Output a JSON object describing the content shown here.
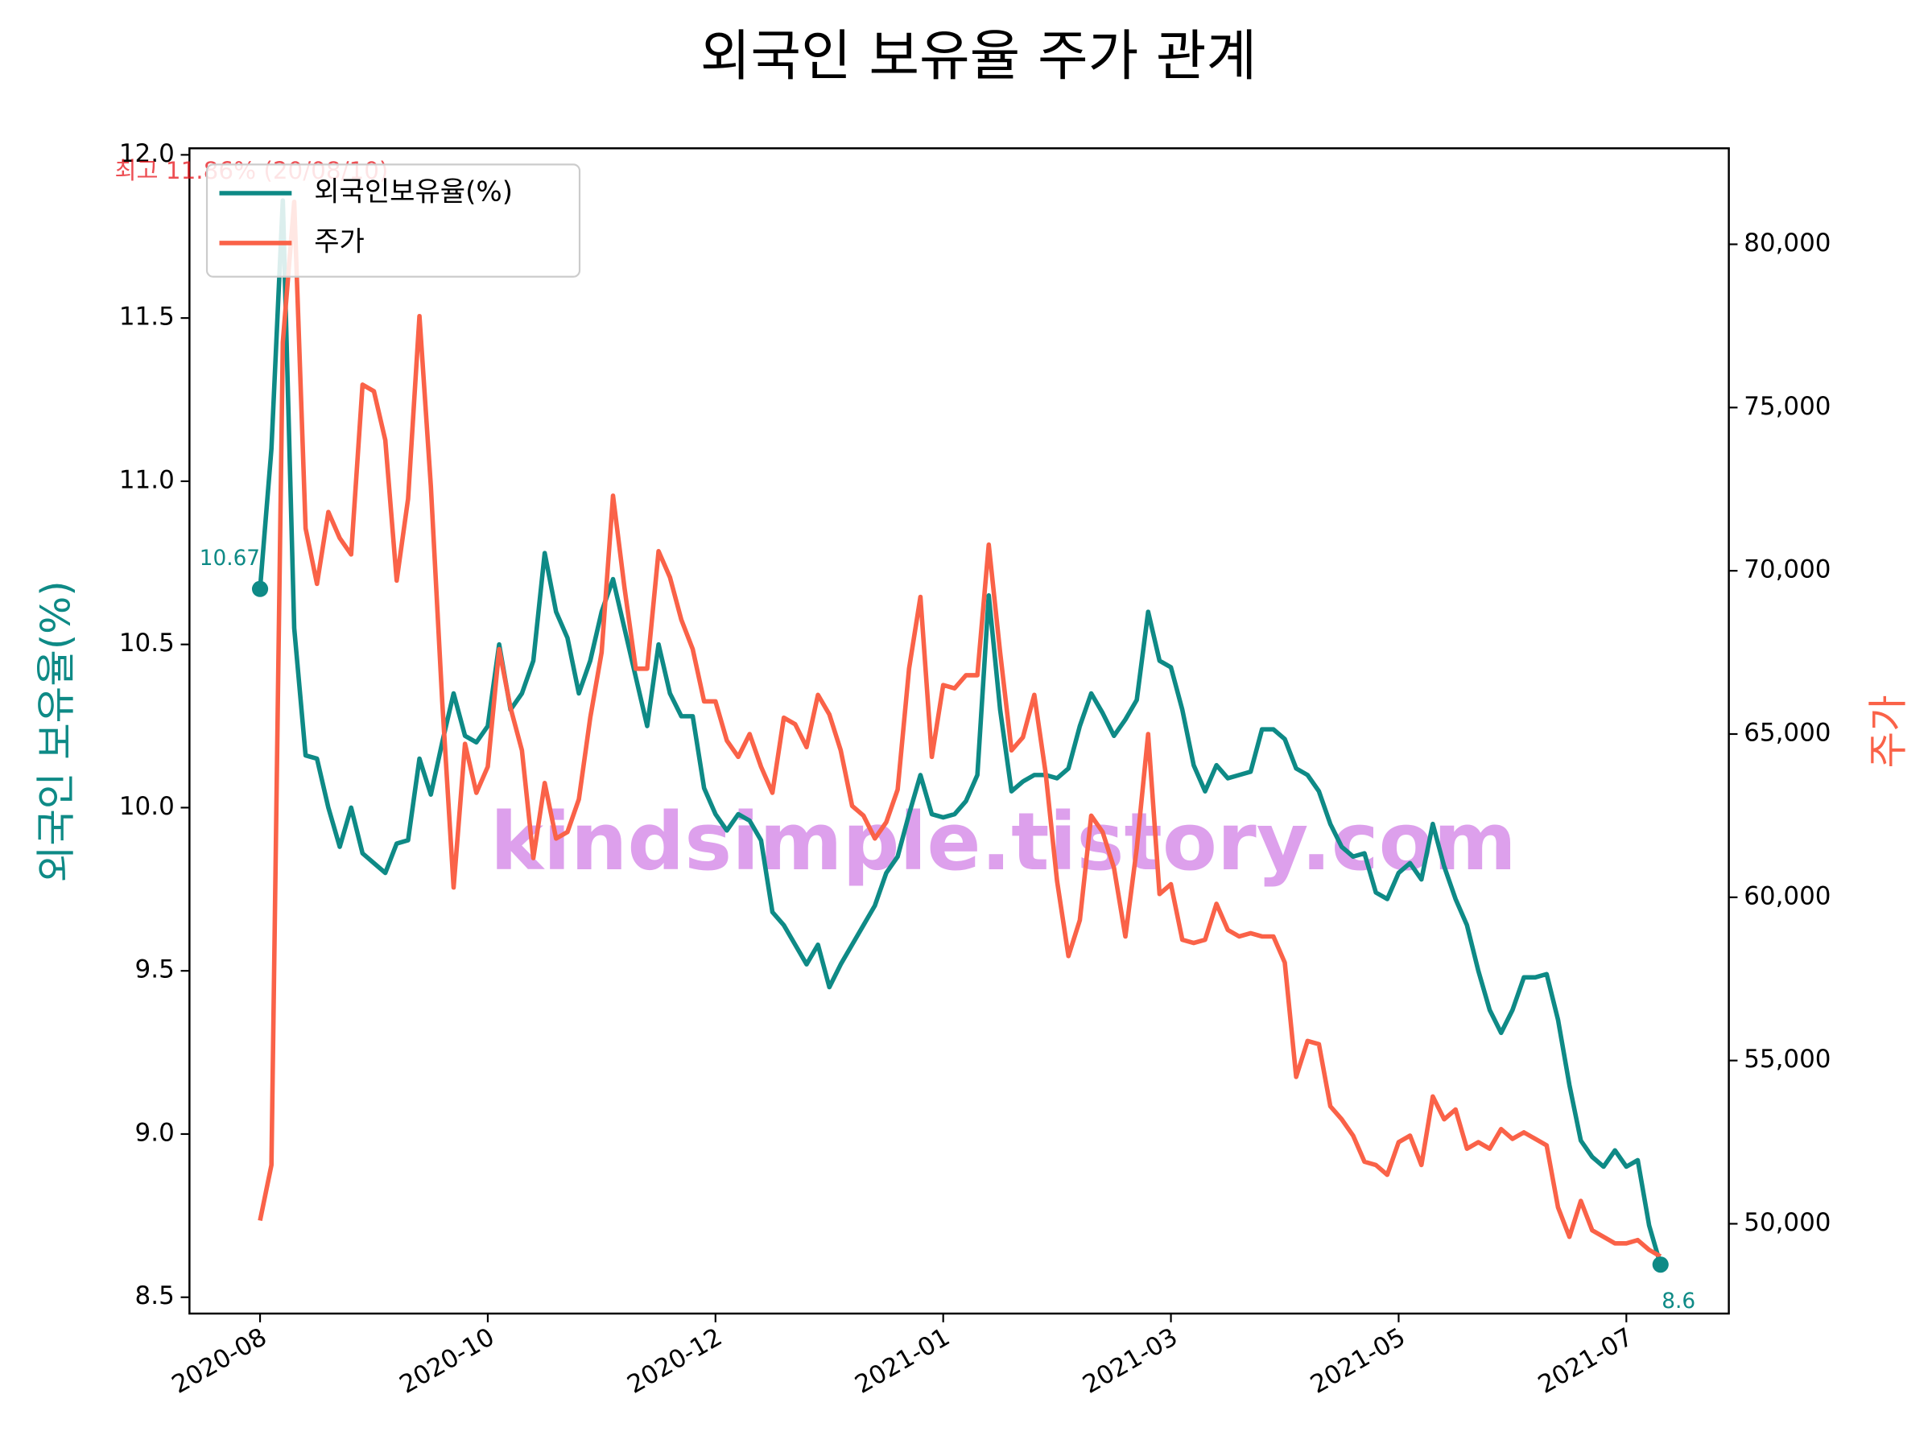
{
  "chart_data": {
    "type": "line",
    "title": "외국인 보유율 주가 관계",
    "ylabel": "외국인 보유율(%)",
    "y2label": "주가",
    "annotation": "최고 11.86% (20/08/10)",
    "watermark": "kindsimple.tistory.com",
    "legend": "upper left",
    "xlim": [
      -0.31,
      6.45
    ],
    "xticks": [
      {
        "value": 0,
        "label": "2020-08"
      },
      {
        "value": 1,
        "label": "2020-10"
      },
      {
        "value": 2,
        "label": "2020-12"
      },
      {
        "value": 3,
        "label": "2021-01"
      },
      {
        "value": 4,
        "label": "2021-03"
      },
      {
        "value": 5,
        "label": "2021-05"
      },
      {
        "value": 6,
        "label": "2021-07"
      }
    ],
    "ylim": [
      8.45,
      12.02
    ],
    "yticks": [
      8.5,
      {
        "value": 9,
        "label": "9.0"
      },
      9.5,
      {
        "value": 10,
        "label": "10.0"
      },
      10.5,
      {
        "value": 11,
        "label": "11.0"
      },
      11.5,
      {
        "value": 12,
        "label": "12.0"
      }
    ],
    "y2lim": [
      47250,
      82940
    ],
    "y2ticks": [
      {
        "value": 50000,
        "label": "50,000"
      },
      {
        "value": 55000,
        "label": "55,000"
      },
      {
        "value": 60000,
        "label": "60,000"
      },
      {
        "value": 65000,
        "label": "65,000"
      },
      {
        "value": 70000,
        "label": "70,000"
      },
      {
        "value": 75000,
        "label": "75,000"
      },
      {
        "value": 80000,
        "label": "80,000"
      }
    ],
    "x": [
      0,
      0.05,
      0.1,
      0.15,
      0.2,
      0.25,
      0.3,
      0.35,
      0.4,
      0.45,
      0.5,
      0.55,
      0.6,
      0.65,
      0.7,
      0.75,
      0.8,
      0.85,
      0.9,
      0.95,
      1,
      1.05,
      1.1,
      1.15,
      1.2,
      1.25,
      1.3,
      1.35,
      1.4,
      1.45,
      1.5,
      1.55,
      1.6,
      1.65,
      1.7,
      1.75,
      1.8,
      1.85,
      1.9,
      1.95,
      2,
      2.05,
      2.1,
      2.15,
      2.2,
      2.25,
      2.3,
      2.35,
      2.4,
      2.45,
      2.5,
      2.55,
      2.6,
      2.65,
      2.7,
      2.75,
      2.8,
      2.85,
      2.9,
      2.95,
      3,
      3.05,
      3.1,
      3.15,
      3.2,
      3.25,
      3.3,
      3.35,
      3.4,
      3.45,
      3.5,
      3.55,
      3.6,
      3.65,
      3.7,
      3.75,
      3.8,
      3.85,
      3.9,
      3.95,
      4,
      4.05,
      4.1,
      4.15,
      4.2,
      4.25,
      4.3,
      4.35,
      4.4,
      4.45,
      4.5,
      4.55,
      4.6,
      4.65,
      4.7,
      4.75,
      4.8,
      4.85,
      4.9,
      4.95,
      5,
      5.05,
      5.1,
      5.15,
      5.2,
      5.25,
      5.3,
      5.35,
      5.4,
      5.45,
      5.5,
      5.55,
      5.6,
      5.65,
      5.7,
      5.75,
      5.8,
      5.85,
      5.9,
      5.95,
      6,
      6.05,
      6.1,
      6.15
    ],
    "series": [
      {
        "name": "외국인보유율(%)",
        "color": "#0e8a86",
        "axis": "y",
        "values": [
          10.67,
          11.1,
          11.86,
          10.55,
          10.16,
          10.15,
          10.0,
          9.88,
          10.0,
          9.86,
          9.83,
          9.8,
          9.89,
          9.9,
          10.15,
          10.04,
          10.2,
          10.35,
          10.22,
          10.2,
          10.25,
          10.5,
          10.3,
          10.35,
          10.45,
          10.78,
          10.6,
          10.52,
          10.35,
          10.45,
          10.6,
          10.7,
          10.55,
          10.4,
          10.25,
          10.5,
          10.35,
          10.28,
          10.28,
          10.06,
          9.98,
          9.93,
          9.98,
          9.96,
          9.9,
          9.68,
          9.64,
          9.58,
          9.52,
          9.58,
          9.45,
          9.52,
          9.58,
          9.64,
          9.7,
          9.8,
          9.85,
          9.98,
          10.1,
          9.98,
          9.97,
          9.98,
          10.02,
          10.1,
          10.65,
          10.3,
          10.05,
          10.08,
          10.1,
          10.1,
          10.09,
          10.12,
          10.25,
          10.35,
          10.29,
          10.22,
          10.27,
          10.33,
          10.6,
          10.45,
          10.43,
          10.3,
          10.13,
          10.05,
          10.13,
          10.09,
          10.1,
          10.11,
          10.24,
          10.24,
          10.21,
          10.12,
          10.1,
          10.05,
          9.95,
          9.88,
          9.85,
          9.86,
          9.74,
          9.72,
          9.8,
          9.83,
          9.78,
          9.95,
          9.82,
          9.72,
          9.64,
          9.5,
          9.38,
          9.31,
          9.38,
          9.48,
          9.48,
          9.49,
          9.35,
          9.15,
          8.98,
          8.93,
          8.9,
          8.95,
          8.9,
          8.92,
          8.72,
          8.6
        ]
      },
      {
        "name": "주가",
        "color": "#fa6248",
        "axis": "y2",
        "values": [
          50100,
          51800,
          77000,
          81300,
          71300,
          69600,
          71800,
          71000,
          70500,
          75700,
          75500,
          74000,
          69700,
          72200,
          77800,
          72600,
          66000,
          60300,
          64700,
          63200,
          64000,
          67600,
          65800,
          64500,
          61200,
          63500,
          61800,
          62000,
          63000,
          65500,
          67500,
          72300,
          69500,
          67000,
          67000,
          70600,
          69800,
          68500,
          67600,
          66000,
          66000,
          64800,
          64300,
          65000,
          64000,
          63200,
          65500,
          65300,
          64600,
          66200,
          65600,
          64500,
          62800,
          62500,
          61800,
          62300,
          63300,
          67000,
          69200,
          64300,
          66500,
          66400,
          66800,
          66800,
          70800,
          67500,
          64500,
          64900,
          66200,
          63800,
          60500,
          58200,
          59300,
          62500,
          62000,
          60900,
          58800,
          61500,
          65000,
          60100,
          60400,
          58700,
          58600,
          58700,
          59800,
          59000,
          58800,
          58900,
          58800,
          58800,
          58000,
          54500,
          55600,
          55500,
          53600,
          53200,
          52700,
          51900,
          51800,
          51500,
          52500,
          52700,
          51800,
          53900,
          53200,
          53500,
          52300,
          52500,
          52300,
          52900,
          52600,
          52800,
          52600,
          52400,
          50500,
          49600,
          50700,
          49800,
          49600,
          49400,
          49400,
          49500,
          49200,
          49000
        ]
      }
    ]
  }
}
